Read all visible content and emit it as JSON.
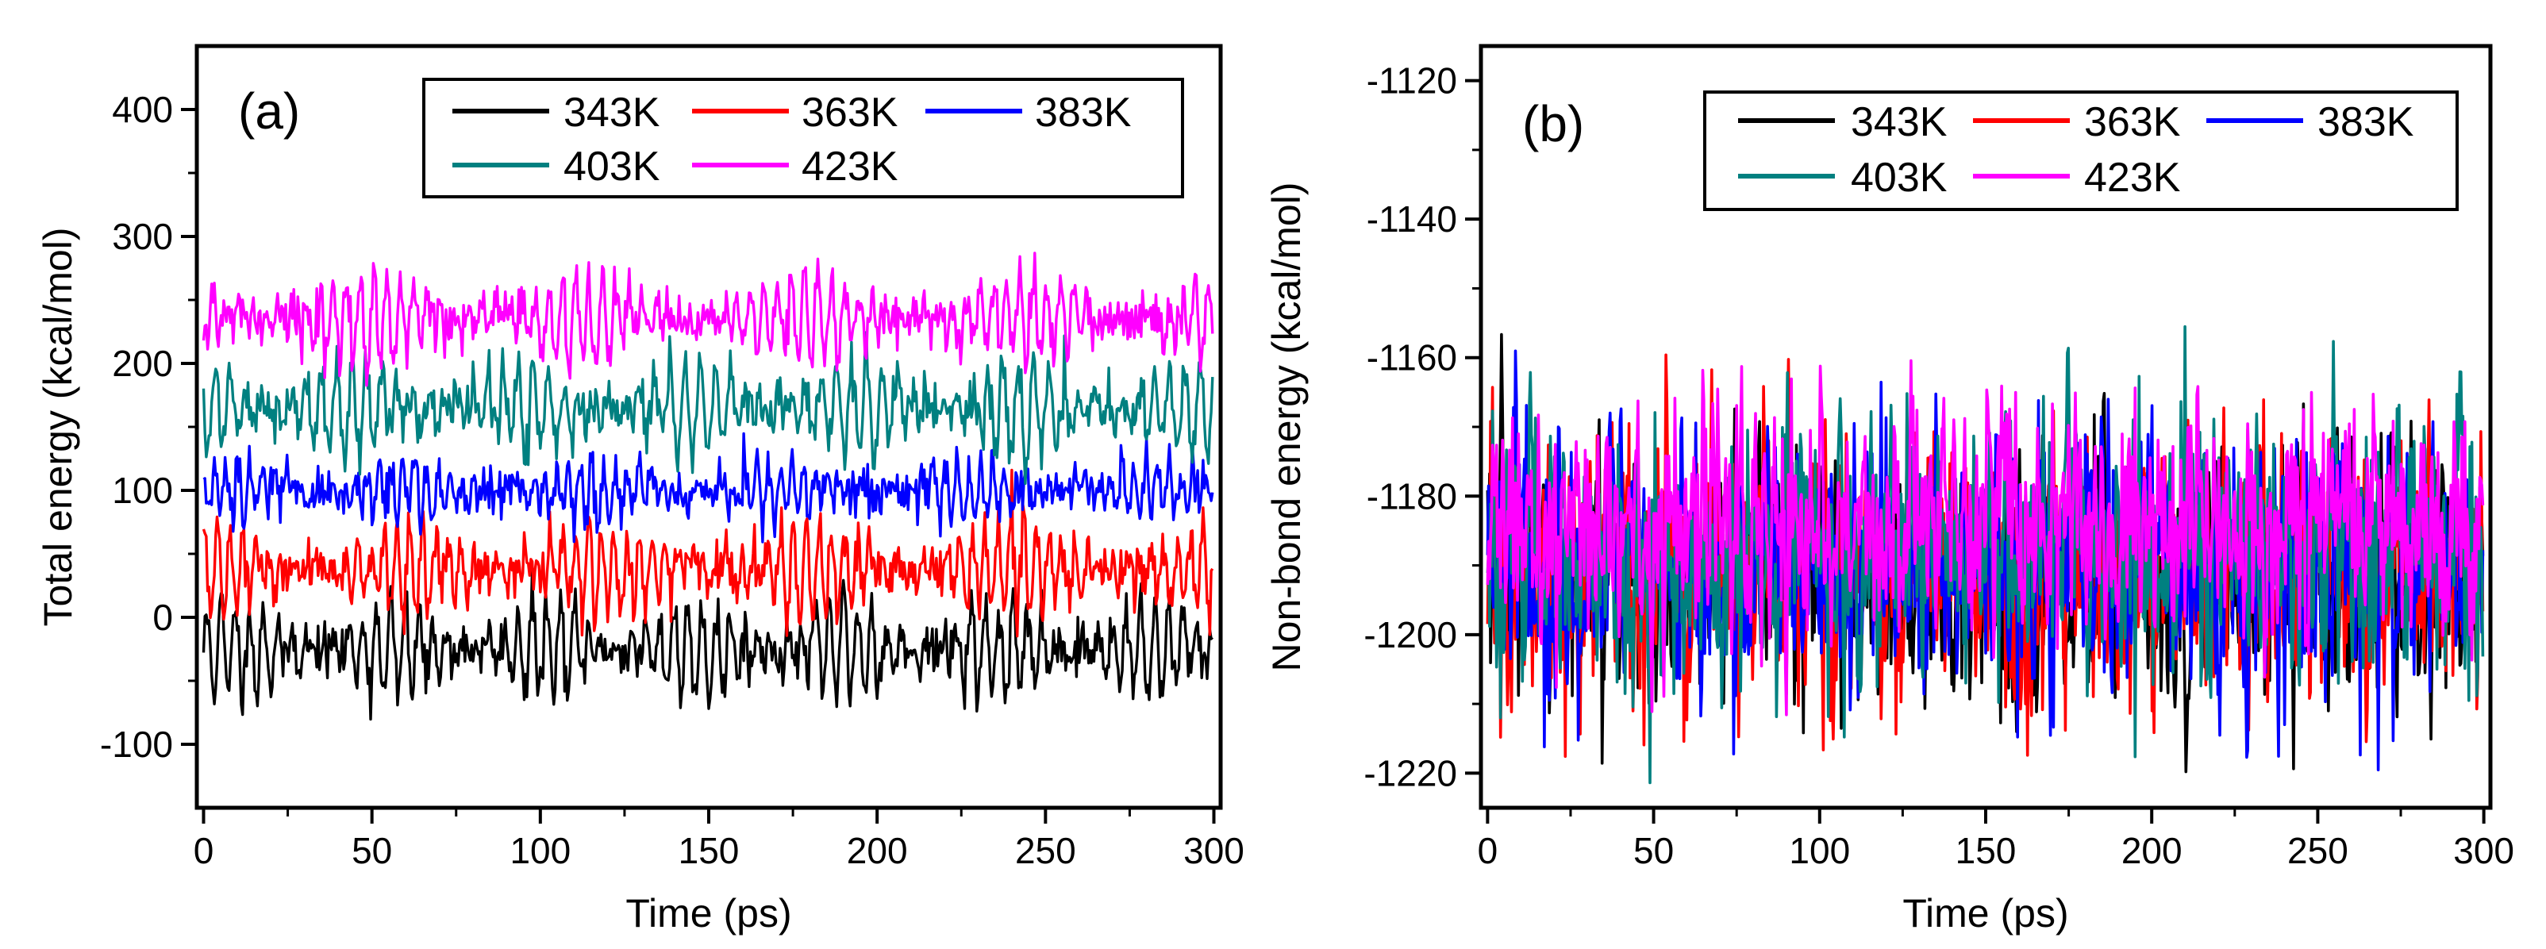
{
  "chart_data": [
    {
      "type": "line",
      "panel_label": "(a)",
      "xlabel": "Time (ps)",
      "ylabel": "Total energy (kcal/mol)",
      "xlim": [
        -2,
        302
      ],
      "ylim": [
        -150,
        450
      ],
      "x_ticks": [
        "0",
        "50",
        "100",
        "150",
        "200",
        "250",
        "300"
      ],
      "y_ticks": [
        "-100",
        "0",
        "100",
        "200",
        "300",
        "400"
      ],
      "legend_position": "top-right",
      "x_sample_step_ps": 0.4,
      "series": [
        {
          "name": "343K",
          "color": "#000000",
          "mean": -25,
          "amplitude": 40,
          "noise": 10,
          "period_ps": 4.2,
          "envelope_period_ps": 45,
          "envelope_phase": 0.0
        },
        {
          "name": "363K",
          "color": "#ff0000",
          "mean": 38,
          "amplitude": 35,
          "noise": 10,
          "period_ps": 3.8,
          "envelope_period_ps": 60,
          "envelope_phase": 1.5
        },
        {
          "name": "383K",
          "color": "#0000ff",
          "mean": 100,
          "amplitude": 22,
          "noise": 9,
          "period_ps": 3.5,
          "envelope_period_ps": 55,
          "envelope_phase": 0.7
        },
        {
          "name": "403K",
          "color": "#008080",
          "mean": 165,
          "amplitude": 38,
          "noise": 10,
          "period_ps": 4.5,
          "envelope_period_ps": 50,
          "envelope_phase": 2.3
        },
        {
          "name": "423K",
          "color": "#ff00ff",
          "mean": 235,
          "amplitude": 35,
          "noise": 10,
          "period_ps": 4.0,
          "envelope_period_ps": 65,
          "envelope_phase": 3.1
        }
      ]
    },
    {
      "type": "line",
      "panel_label": "(b)",
      "xlabel": "Time (ps)",
      "ylabel": "Non-bond energy (kcal/mol)",
      "xlim": [
        -2,
        302
      ],
      "ylim": [
        -1225,
        -1115
      ],
      "x_ticks": [
        "0",
        "50",
        "100",
        "150",
        "200",
        "250",
        "300"
      ],
      "y_ticks": [
        "-1220",
        "-1200",
        "-1180",
        "-1160",
        "-1140",
        "-1120"
      ],
      "legend_position": "top-right",
      "x_sample_step_ps": 0.3,
      "series": [
        {
          "name": "343K",
          "color": "#000000",
          "mean": -1192,
          "spread": 9
        },
        {
          "name": "363K",
          "color": "#ff0000",
          "mean": -1191,
          "spread": 9
        },
        {
          "name": "383K",
          "color": "#0000ff",
          "mean": -1190,
          "spread": 9
        },
        {
          "name": "403K",
          "color": "#008080",
          "mean": -1188,
          "spread": 9
        },
        {
          "name": "423K",
          "color": "#ff00ff",
          "mean": -1184,
          "spread": 8
        }
      ]
    }
  ]
}
